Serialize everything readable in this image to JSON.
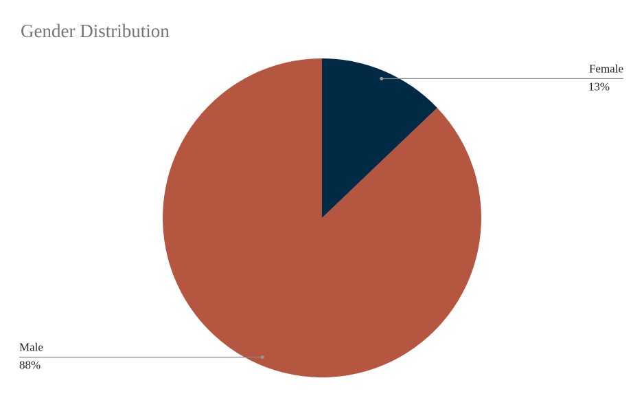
{
  "chart_data": {
    "type": "pie",
    "title": "Gender Distribution",
    "categories": [
      "Female",
      "Male"
    ],
    "values": [
      13,
      88
    ],
    "value_labels": [
      "13%",
      "88%"
    ],
    "colors": [
      "#012a45",
      "#b55641"
    ]
  }
}
